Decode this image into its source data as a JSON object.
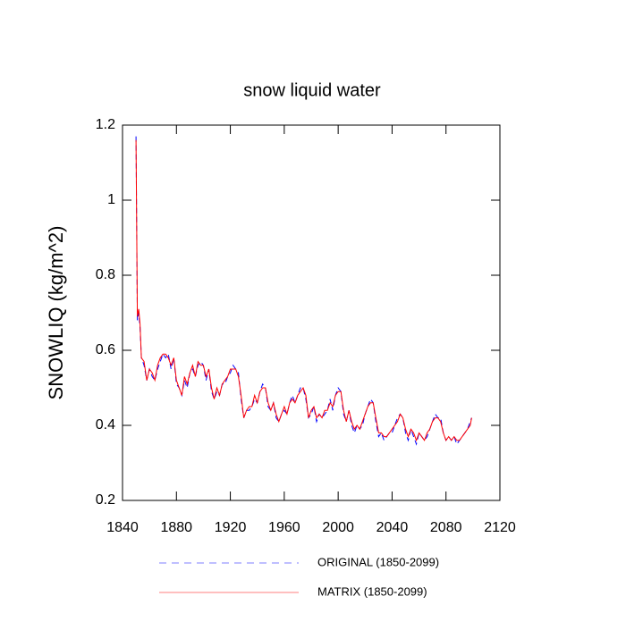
{
  "chart_data": {
    "type": "line",
    "title": "snow liquid water",
    "y_label": "SNOWLIQ  (kg/m^2)",
    "x": [
      1850,
      1851,
      1852,
      1853,
      1854,
      1856,
      1858,
      1860,
      1862,
      1864,
      1866,
      1868,
      1870,
      1872,
      1874,
      1876,
      1878,
      1880,
      1882,
      1884,
      1886,
      1888,
      1890,
      1892,
      1894,
      1896,
      1898,
      1900,
      1902,
      1904,
      1906,
      1908,
      1910,
      1912,
      1914,
      1916,
      1918,
      1920,
      1922,
      1924,
      1926,
      1928,
      1930,
      1932,
      1934,
      1936,
      1938,
      1940,
      1942,
      1944,
      1946,
      1948,
      1950,
      1952,
      1954,
      1956,
      1958,
      1960,
      1962,
      1964,
      1966,
      1968,
      1970,
      1972,
      1974,
      1976,
      1978,
      1980,
      1982,
      1984,
      1986,
      1988,
      1990,
      1992,
      1994,
      1996,
      1998,
      2000,
      2002,
      2004,
      2006,
      2008,
      2010,
      2012,
      2014,
      2016,
      2018,
      2020,
      2022,
      2024,
      2026,
      2028,
      2030,
      2032,
      2034,
      2036,
      2038,
      2040,
      2042,
      2044,
      2046,
      2048,
      2050,
      2052,
      2054,
      2056,
      2058,
      2060,
      2062,
      2064,
      2066,
      2068,
      2070,
      2072,
      2074,
      2076,
      2078,
      2080,
      2082,
      2084,
      2086,
      2088,
      2090,
      2092,
      2094,
      2096,
      2098,
      2099
    ],
    "series": [
      {
        "name": "ORIGINAL (1850-2099)",
        "color": "#0000ff",
        "dash": true,
        "values": [
          1.17,
          0.68,
          0.7,
          0.66,
          0.58,
          0.56,
          0.52,
          0.55,
          0.53,
          0.52,
          0.55,
          0.57,
          0.59,
          0.58,
          0.59,
          0.55,
          0.58,
          0.51,
          0.5,
          0.48,
          0.52,
          0.5,
          0.54,
          0.55,
          0.53,
          0.56,
          0.57,
          0.56,
          0.52,
          0.55,
          0.49,
          0.47,
          0.49,
          0.48,
          0.51,
          0.51,
          0.53,
          0.54,
          0.56,
          0.55,
          0.54,
          0.47,
          0.42,
          0.44,
          0.44,
          0.45,
          0.47,
          0.46,
          0.49,
          0.51,
          0.5,
          0.45,
          0.44,
          0.46,
          0.42,
          0.41,
          0.43,
          0.44,
          0.43,
          0.46,
          0.48,
          0.46,
          0.48,
          0.5,
          0.5,
          0.47,
          0.42,
          0.43,
          0.45,
          0.41,
          0.43,
          0.42,
          0.43,
          0.44,
          0.47,
          0.44,
          0.48,
          0.5,
          0.49,
          0.43,
          0.41,
          0.44,
          0.4,
          0.38,
          0.4,
          0.39,
          0.4,
          0.43,
          0.45,
          0.47,
          0.46,
          0.41,
          0.37,
          0.38,
          0.36,
          0.37,
          0.38,
          0.38,
          0.4,
          0.42,
          0.43,
          0.42,
          0.38,
          0.36,
          0.39,
          0.37,
          0.35,
          0.38,
          0.37,
          0.36,
          0.37,
          0.39,
          0.41,
          0.43,
          0.42,
          0.42,
          0.38,
          0.36,
          0.37,
          0.36,
          0.37,
          0.35,
          0.36,
          0.37,
          0.38,
          0.39,
          0.41,
          0.42
        ]
      },
      {
        "name": "MATRIX (1850-2099)",
        "color": "#ff0000",
        "dash": false,
        "values": [
          1.16,
          0.69,
          0.71,
          0.67,
          0.58,
          0.57,
          0.52,
          0.55,
          0.54,
          0.52,
          0.56,
          0.58,
          0.59,
          0.59,
          0.58,
          0.56,
          0.58,
          0.52,
          0.5,
          0.48,
          0.53,
          0.51,
          0.54,
          0.56,
          0.53,
          0.57,
          0.56,
          0.56,
          0.53,
          0.55,
          0.5,
          0.47,
          0.5,
          0.48,
          0.51,
          0.52,
          0.53,
          0.55,
          0.55,
          0.55,
          0.53,
          0.48,
          0.42,
          0.44,
          0.45,
          0.45,
          0.48,
          0.46,
          0.49,
          0.5,
          0.5,
          0.46,
          0.44,
          0.46,
          0.43,
          0.41,
          0.43,
          0.45,
          0.43,
          0.46,
          0.47,
          0.46,
          0.48,
          0.49,
          0.5,
          0.48,
          0.42,
          0.44,
          0.45,
          0.42,
          0.43,
          0.42,
          0.44,
          0.44,
          0.46,
          0.45,
          0.48,
          0.49,
          0.49,
          0.44,
          0.41,
          0.44,
          0.41,
          0.39,
          0.4,
          0.39,
          0.41,
          0.43,
          0.45,
          0.46,
          0.46,
          0.42,
          0.38,
          0.38,
          0.37,
          0.37,
          0.38,
          0.39,
          0.4,
          0.41,
          0.43,
          0.42,
          0.39,
          0.37,
          0.39,
          0.38,
          0.36,
          0.38,
          0.37,
          0.36,
          0.38,
          0.39,
          0.41,
          0.42,
          0.42,
          0.41,
          0.38,
          0.36,
          0.37,
          0.36,
          0.37,
          0.36,
          0.36,
          0.37,
          0.38,
          0.39,
          0.4,
          0.42
        ]
      }
    ],
    "xlim": [
      1840,
      2120
    ],
    "xticks": [
      1840,
      1880,
      1920,
      1960,
      2000,
      2040,
      2080,
      2120
    ],
    "ylim": [
      0.2,
      1.2
    ],
    "yticks": [
      0.2,
      0.4,
      0.6,
      0.8,
      1.0,
      1.2
    ]
  }
}
